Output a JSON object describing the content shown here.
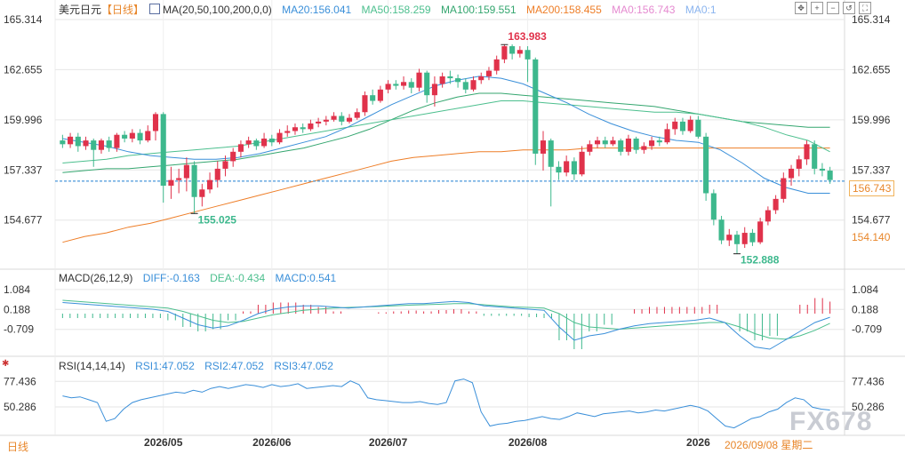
{
  "panel_main": {
    "symbol": "美元日元",
    "period_tag": "【日线】",
    "ma_label": "MA(20,50,100,200,0,0)",
    "ma20": "MA20:156.041",
    "ma50": "MA50:158.259",
    "ma100": "MA100:159.551",
    "ma200": "MA200:158.455",
    "ma0a": "MA0:156.743",
    "ma0b": "MA0:1",
    "hi_label": "163.983",
    "lo1_label": "155.025",
    "lo2_label": "152.888",
    "tag_current": "156.743",
    "tag_ma200": "154.140"
  },
  "panel_macd": {
    "label": "MACD(26,12,9)",
    "diff": "DIFF:-0.163",
    "dea": "DEA:-0.434",
    "macd": "MACD:0.541"
  },
  "panel_rsi": {
    "label": "RSI(14,14,14)",
    "rsi1": "RSI1:47.052",
    "rsi2": "RSI2:47.052",
    "rsi3": "RSI3:47.052"
  },
  "toolbar": {
    "buttons": [
      "move-icon",
      "zoom-in-icon",
      "zoom-out-icon",
      "reset-icon",
      "fullscreen-icon"
    ]
  },
  "footer": {
    "period_button": "日线",
    "crosshair_date": "2026/09/08 星期二"
  },
  "watermark": "FX678",
  "colors": {
    "up": "#e0324b",
    "down": "#3db88d",
    "ma20": "#3a8fd9",
    "ma50": "#4cbf8e",
    "ma100": "#34a66f",
    "ma200": "#ee7e28",
    "ma0a": "#e58ad0",
    "ma0b": "#8ab4ef",
    "current_line": "#1f7fd1",
    "grid": "#e6e6e6"
  },
  "chart_data": [
    {
      "type": "candlestick",
      "title": "美元日元",
      "y_ticks": [
        "165.314",
        "162.655",
        "159.996",
        "157.337",
        "154.677"
      ],
      "ylim": [
        152.4,
        165.314
      ],
      "x_ticks": [
        "2026/05",
        "2026/06",
        "2026/07",
        "2026/08",
        "2026"
      ],
      "candles": [
        [
          158.9,
          158.7,
          159.2,
          158.5
        ],
        [
          158.7,
          159.1,
          159.3,
          158.5
        ],
        [
          159.1,
          158.6,
          159.3,
          158.3
        ],
        [
          158.6,
          158.9,
          159.1,
          158.4
        ],
        [
          158.9,
          158.4,
          159.0,
          157.5
        ],
        [
          158.4,
          158.9,
          159.0,
          158.2
        ],
        [
          158.9,
          158.5,
          159.1,
          158.3
        ],
        [
          158.5,
          159.2,
          159.3,
          158.3
        ],
        [
          159.2,
          159.0,
          159.4,
          158.8
        ],
        [
          159.0,
          159.3,
          159.5,
          158.8
        ],
        [
          159.3,
          158.9,
          159.5,
          158.7
        ],
        [
          158.9,
          159.4,
          159.7,
          158.8
        ],
        [
          159.4,
          160.3,
          160.4,
          158.9
        ],
        [
          160.3,
          156.5,
          160.4,
          155.6
        ],
        [
          156.5,
          156.8,
          157.5,
          155.8
        ],
        [
          156.8,
          156.9,
          157.4,
          156.1
        ],
        [
          156.9,
          157.6,
          158.0,
          156.2
        ],
        [
          157.6,
          155.9,
          157.8,
          155.0
        ],
        [
          155.9,
          156.3,
          156.6,
          155.4
        ],
        [
          156.3,
          156.8,
          157.2,
          156.1
        ],
        [
          156.8,
          157.4,
          157.8,
          156.4
        ],
        [
          157.4,
          157.8,
          158.1,
          157.0
        ],
        [
          157.8,
          158.3,
          158.5,
          157.5
        ],
        [
          158.3,
          158.7,
          158.9,
          158.0
        ],
        [
          158.7,
          158.9,
          159.1,
          158.5
        ],
        [
          158.9,
          158.6,
          159.0,
          158.4
        ],
        [
          158.6,
          159.0,
          159.3,
          158.5
        ],
        [
          159.0,
          158.8,
          159.2,
          158.6
        ],
        [
          158.8,
          159.3,
          159.5,
          158.7
        ],
        [
          159.3,
          159.4,
          159.7,
          159.1
        ],
        [
          159.4,
          159.6,
          159.8,
          159.2
        ],
        [
          159.6,
          159.5,
          159.8,
          159.3
        ],
        [
          159.5,
          159.8,
          160.0,
          159.4
        ],
        [
          159.8,
          159.9,
          160.1,
          159.6
        ],
        [
          159.9,
          160.0,
          160.2,
          159.7
        ],
        [
          160.0,
          160.2,
          160.4,
          159.9
        ],
        [
          160.2,
          159.9,
          160.4,
          159.7
        ],
        [
          159.9,
          160.1,
          160.3,
          159.8
        ],
        [
          160.1,
          160.4,
          160.6,
          160.0
        ],
        [
          160.4,
          161.3,
          161.5,
          160.2
        ],
        [
          161.3,
          161.0,
          161.6,
          160.8
        ],
        [
          161.0,
          161.6,
          161.8,
          160.9
        ],
        [
          161.6,
          161.9,
          162.1,
          161.4
        ],
        [
          161.9,
          161.8,
          162.1,
          161.6
        ],
        [
          161.8,
          162.0,
          162.3,
          161.6
        ],
        [
          162.0,
          161.7,
          162.2,
          161.4
        ],
        [
          161.7,
          162.5,
          162.7,
          161.5
        ],
        [
          162.5,
          161.3,
          162.6,
          160.9
        ],
        [
          161.3,
          161.9,
          162.3,
          160.7
        ],
        [
          161.9,
          162.3,
          162.5,
          161.7
        ],
        [
          162.3,
          162.2,
          162.6,
          161.9
        ],
        [
          162.2,
          162.0,
          162.4,
          161.7
        ],
        [
          162.0,
          161.6,
          162.2,
          161.4
        ],
        [
          161.6,
          162.1,
          162.3,
          161.5
        ],
        [
          162.1,
          162.3,
          162.5,
          161.9
        ],
        [
          162.3,
          162.6,
          162.8,
          162.1
        ],
        [
          162.6,
          163.2,
          163.4,
          162.4
        ],
        [
          163.2,
          163.9,
          164.0,
          163.0
        ],
        [
          163.9,
          163.5,
          164.0,
          163.2
        ],
        [
          163.5,
          163.7,
          163.9,
          163.3
        ],
        [
          163.7,
          163.2,
          163.9,
          162.0
        ],
        [
          163.2,
          158.2,
          163.3,
          157.6
        ],
        [
          158.2,
          158.9,
          159.4,
          157.3
        ],
        [
          158.9,
          157.5,
          159.0,
          155.4
        ],
        [
          157.5,
          157.2,
          157.8,
          156.8
        ],
        [
          157.2,
          157.8,
          158.1,
          157.0
        ],
        [
          157.8,
          157.1,
          158.0,
          156.8
        ],
        [
          157.1,
          158.3,
          158.6,
          157.0
        ],
        [
          158.3,
          158.7,
          158.9,
          158.1
        ],
        [
          158.7,
          158.9,
          159.1,
          158.5
        ],
        [
          158.9,
          158.7,
          159.1,
          158.5
        ],
        [
          158.7,
          158.9,
          159.1,
          158.6
        ],
        [
          158.9,
          158.3,
          159.0,
          158.1
        ],
        [
          158.3,
          159.0,
          159.2,
          158.1
        ],
        [
          159.0,
          158.4,
          159.1,
          158.2
        ],
        [
          158.4,
          158.6,
          158.8,
          158.2
        ],
        [
          158.6,
          158.9,
          159.1,
          158.4
        ],
        [
          158.9,
          158.8,
          159.1,
          158.6
        ],
        [
          158.8,
          159.5,
          159.8,
          158.7
        ],
        [
          159.5,
          159.9,
          160.1,
          159.2
        ],
        [
          159.9,
          159.4,
          160.1,
          159.2
        ],
        [
          159.4,
          160.0,
          160.2,
          159.3
        ],
        [
          160.0,
          159.1,
          160.2,
          159.0
        ],
        [
          159.1,
          156.1,
          159.3,
          155.7
        ],
        [
          156.1,
          154.7,
          156.3,
          154.4
        ],
        [
          154.7,
          153.6,
          154.9,
          153.4
        ],
        [
          153.6,
          153.9,
          154.2,
          153.3
        ],
        [
          153.9,
          153.4,
          154.1,
          152.9
        ],
        [
          153.4,
          154.0,
          154.3,
          153.2
        ],
        [
          154.0,
          153.5,
          154.2,
          153.3
        ],
        [
          153.5,
          154.6,
          154.8,
          153.4
        ],
        [
          154.6,
          155.2,
          155.4,
          154.4
        ],
        [
          155.2,
          155.8,
          156.0,
          155.0
        ],
        [
          155.8,
          156.9,
          157.2,
          155.6
        ],
        [
          156.9,
          157.4,
          157.6,
          156.5
        ],
        [
          157.4,
          157.9,
          158.1,
          157.0
        ],
        [
          157.9,
          158.7,
          158.9,
          157.6
        ],
        [
          158.7,
          157.4,
          158.9,
          157.1
        ],
        [
          157.4,
          157.3,
          157.7,
          157.0
        ],
        [
          157.3,
          156.8,
          157.5,
          156.6
        ]
      ],
      "ma20": [
        159.0,
        158.8,
        158.6,
        158.3,
        158.1,
        158.0,
        157.9,
        157.9,
        158.0,
        158.2,
        158.5,
        158.8,
        159.1,
        159.6,
        160.2,
        160.8,
        161.3,
        161.8,
        162.1,
        162.3,
        162.2,
        161.9,
        161.4,
        160.9,
        160.3,
        159.8,
        159.4,
        159.1,
        158.9,
        158.8,
        158.4,
        157.7,
        156.9,
        156.4,
        156.1,
        156.1
      ],
      "ma50": [
        157.7,
        157.8,
        157.9,
        158.1,
        158.2,
        158.3,
        158.4,
        158.5,
        158.6,
        158.8,
        159.0,
        159.2,
        159.4,
        159.6,
        159.8,
        160.0,
        160.2,
        160.4,
        160.6,
        160.8,
        161.0,
        161.0,
        160.9,
        160.8,
        160.7,
        160.6,
        160.5,
        160.4,
        160.4,
        160.3,
        160.1,
        159.9,
        159.6,
        159.2,
        158.9,
        158.3
      ],
      "ma100": [
        157.2,
        157.3,
        157.4,
        157.4,
        157.5,
        157.6,
        157.7,
        157.8,
        157.9,
        158.1,
        158.3,
        158.5,
        158.8,
        159.1,
        159.5,
        160.0,
        160.5,
        160.9,
        161.2,
        161.4,
        161.4,
        161.3,
        161.2,
        161.1,
        161.0,
        160.9,
        160.8,
        160.7,
        160.5,
        160.3,
        160.1,
        159.9,
        159.8,
        159.7,
        159.6,
        159.6
      ],
      "ma200": [
        153.5,
        153.8,
        154.0,
        154.3,
        154.5,
        154.8,
        155.1,
        155.4,
        155.7,
        156.0,
        156.3,
        156.6,
        156.9,
        157.2,
        157.5,
        157.8,
        158.0,
        158.1,
        158.2,
        158.3,
        158.3,
        158.4,
        158.4,
        158.4,
        158.5,
        158.5,
        158.5,
        158.5,
        158.5,
        158.5,
        158.5,
        158.5,
        158.5,
        158.5,
        158.5,
        158.5
      ],
      "current_price": 156.743,
      "annotations": [
        {
          "label": "163.983",
          "value": 163.983,
          "index": 57
        },
        {
          "label": "155.025",
          "value": 155.025,
          "index": 17
        },
        {
          "label": "152.888",
          "value": 152.888,
          "index": 87
        }
      ]
    },
    {
      "type": "bar",
      "title": "MACD(26,12,9)",
      "y_ticks": [
        "1.084",
        "0.188",
        "-0.709"
      ],
      "ylim": [
        -1.8,
        1.4
      ],
      "diff": [
        0.5,
        0.45,
        0.4,
        0.35,
        0.3,
        0.25,
        0.2,
        0.1,
        -0.2,
        -0.5,
        -0.65,
        -0.55,
        -0.3,
        0.0,
        0.2,
        0.3,
        0.35,
        0.35,
        0.3,
        0.25,
        0.3,
        0.35,
        0.4,
        0.45,
        0.45,
        0.5,
        0.55,
        0.5,
        0.35,
        0.3,
        0.25,
        0.2,
        0.15,
        -0.6,
        -1.2,
        -1.0,
        -0.9,
        -0.7,
        -0.55,
        -0.45,
        -0.4,
        -0.35,
        -0.3,
        -0.2,
        -0.4,
        -1.0,
        -1.5,
        -1.6,
        -1.2,
        -0.8,
        -0.4,
        -0.163
      ],
      "dea": [
        0.6,
        0.55,
        0.5,
        0.45,
        0.4,
        0.35,
        0.3,
        0.25,
        0.1,
        -0.1,
        -0.3,
        -0.4,
        -0.35,
        -0.2,
        -0.05,
        0.05,
        0.15,
        0.2,
        0.25,
        0.28,
        0.3,
        0.32,
        0.35,
        0.38,
        0.4,
        0.42,
        0.45,
        0.45,
        0.4,
        0.35,
        0.3,
        0.28,
        0.25,
        0.0,
        -0.4,
        -0.6,
        -0.65,
        -0.7,
        -0.65,
        -0.6,
        -0.55,
        -0.5,
        -0.45,
        -0.4,
        -0.4,
        -0.6,
        -0.9,
        -1.1,
        -1.15,
        -1.0,
        -0.75,
        -0.434
      ],
      "macd": [
        -0.2,
        -0.2,
        -0.2,
        -0.2,
        -0.2,
        -0.2,
        -0.2,
        -0.3,
        -0.6,
        -0.8,
        -0.7,
        -0.3,
        0.1,
        0.4,
        0.5,
        0.5,
        0.4,
        0.3,
        0.1,
        0.0,
        0.0,
        0.06,
        0.1,
        0.14,
        0.1,
        0.16,
        0.2,
        0.1,
        -0.1,
        -0.1,
        -0.1,
        -0.16,
        -0.2,
        -1.2,
        -1.6,
        -0.8,
        -0.5,
        0.0,
        0.2,
        0.3,
        0.3,
        0.3,
        0.3,
        0.4,
        0.0,
        -0.8,
        -1.2,
        -1.0,
        0.0,
        0.4,
        0.7,
        0.541
      ]
    },
    {
      "type": "line",
      "title": "RSI(14,14,14)",
      "y_ticks": [
        "77.436",
        "50.286"
      ],
      "ylim": [
        22,
        90
      ],
      "rsi": [
        62,
        60,
        61,
        58,
        55,
        35,
        38,
        48,
        55,
        58,
        60,
        62,
        64,
        66,
        65,
        68,
        66,
        70,
        72,
        70,
        72,
        74,
        73,
        71,
        74,
        72,
        73,
        75,
        70,
        71,
        72,
        73,
        72,
        78,
        74,
        60,
        58,
        57,
        56,
        55,
        55,
        56,
        54,
        53,
        55,
        78,
        80,
        76,
        45,
        30,
        32,
        33,
        35,
        36,
        38,
        40,
        38,
        37,
        40,
        44,
        42,
        40,
        43,
        44,
        45,
        46,
        44,
        45,
        47,
        46,
        48,
        50,
        52,
        50,
        46,
        38,
        30,
        28,
        33,
        38,
        40,
        45,
        48,
        55,
        60,
        58,
        50,
        48,
        47.052
      ]
    }
  ]
}
